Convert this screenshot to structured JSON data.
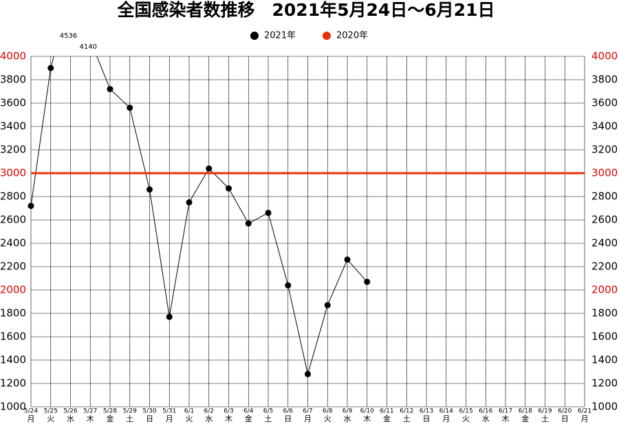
{
  "chart_data": {
    "type": "line",
    "title": "全国感染者数推移　2021年5月24日～6月21日",
    "categories": [
      "5/24",
      "5/25",
      "5/26",
      "5/27",
      "5/28",
      "5/29",
      "5/30",
      "5/31",
      "6/1",
      "6/2",
      "6/3",
      "6/4",
      "6/5",
      "6/6",
      "6/7",
      "6/8",
      "6/9",
      "6/10",
      "6/11",
      "6/12",
      "6/13",
      "6/14",
      "6/15",
      "6/16",
      "6/17",
      "6/18",
      "6/19",
      "6/20",
      "6/21"
    ],
    "weekdays": [
      "月",
      "火",
      "水",
      "木",
      "金",
      "土",
      "日",
      "月",
      "火",
      "水",
      "木",
      "金",
      "土",
      "日",
      "月",
      "火",
      "水",
      "木",
      "金",
      "土",
      "日",
      "月",
      "火",
      "水",
      "木",
      "金",
      "土",
      "日",
      "月"
    ],
    "series": [
      {
        "name": "2021年",
        "color": "#000000",
        "values": [
          2720,
          3900,
          4536,
          4140,
          3720,
          3560,
          2860,
          1770,
          2750,
          3040,
          2870,
          2570,
          2660,
          2040,
          1280,
          1870,
          2260,
          2070,
          null,
          null,
          null,
          null,
          null,
          null,
          null,
          null,
          null,
          null,
          null
        ],
        "value_labels": [
          null,
          null,
          "4536",
          "4140",
          null,
          null,
          null,
          null,
          null,
          null,
          null,
          null,
          null,
          null,
          null,
          null,
          null,
          null,
          null,
          null,
          null,
          null,
          null,
          null,
          null,
          null,
          null,
          null,
          null
        ]
      },
      {
        "name": "2020年",
        "color": "#e8300a",
        "values": [
          3000,
          3000,
          3000,
          3000,
          3000,
          3000,
          3000,
          3000,
          3000,
          3000,
          3000,
          3000,
          3000,
          3000,
          3000,
          3000,
          3000,
          3000,
          3000,
          3000,
          3000,
          3000,
          3000,
          3000,
          3000,
          3000,
          3000,
          3000,
          3000
        ]
      }
    ],
    "ylim": [
      1000,
      4000
    ],
    "yticks": [
      1000,
      1200,
      1400,
      1600,
      1800,
      2000,
      2200,
      2400,
      2600,
      2800,
      3000,
      3200,
      3400,
      3600,
      3800,
      4000
    ],
    "ytick_colors": [
      "#000000",
      "#000000",
      "#000000",
      "#000000",
      "#000000",
      "#e00000",
      "#000000",
      "#000000",
      "#000000",
      "#000000",
      "#e00000",
      "#000000",
      "#000000",
      "#000000",
      "#000000",
      "#e00000"
    ],
    "grid": true
  }
}
